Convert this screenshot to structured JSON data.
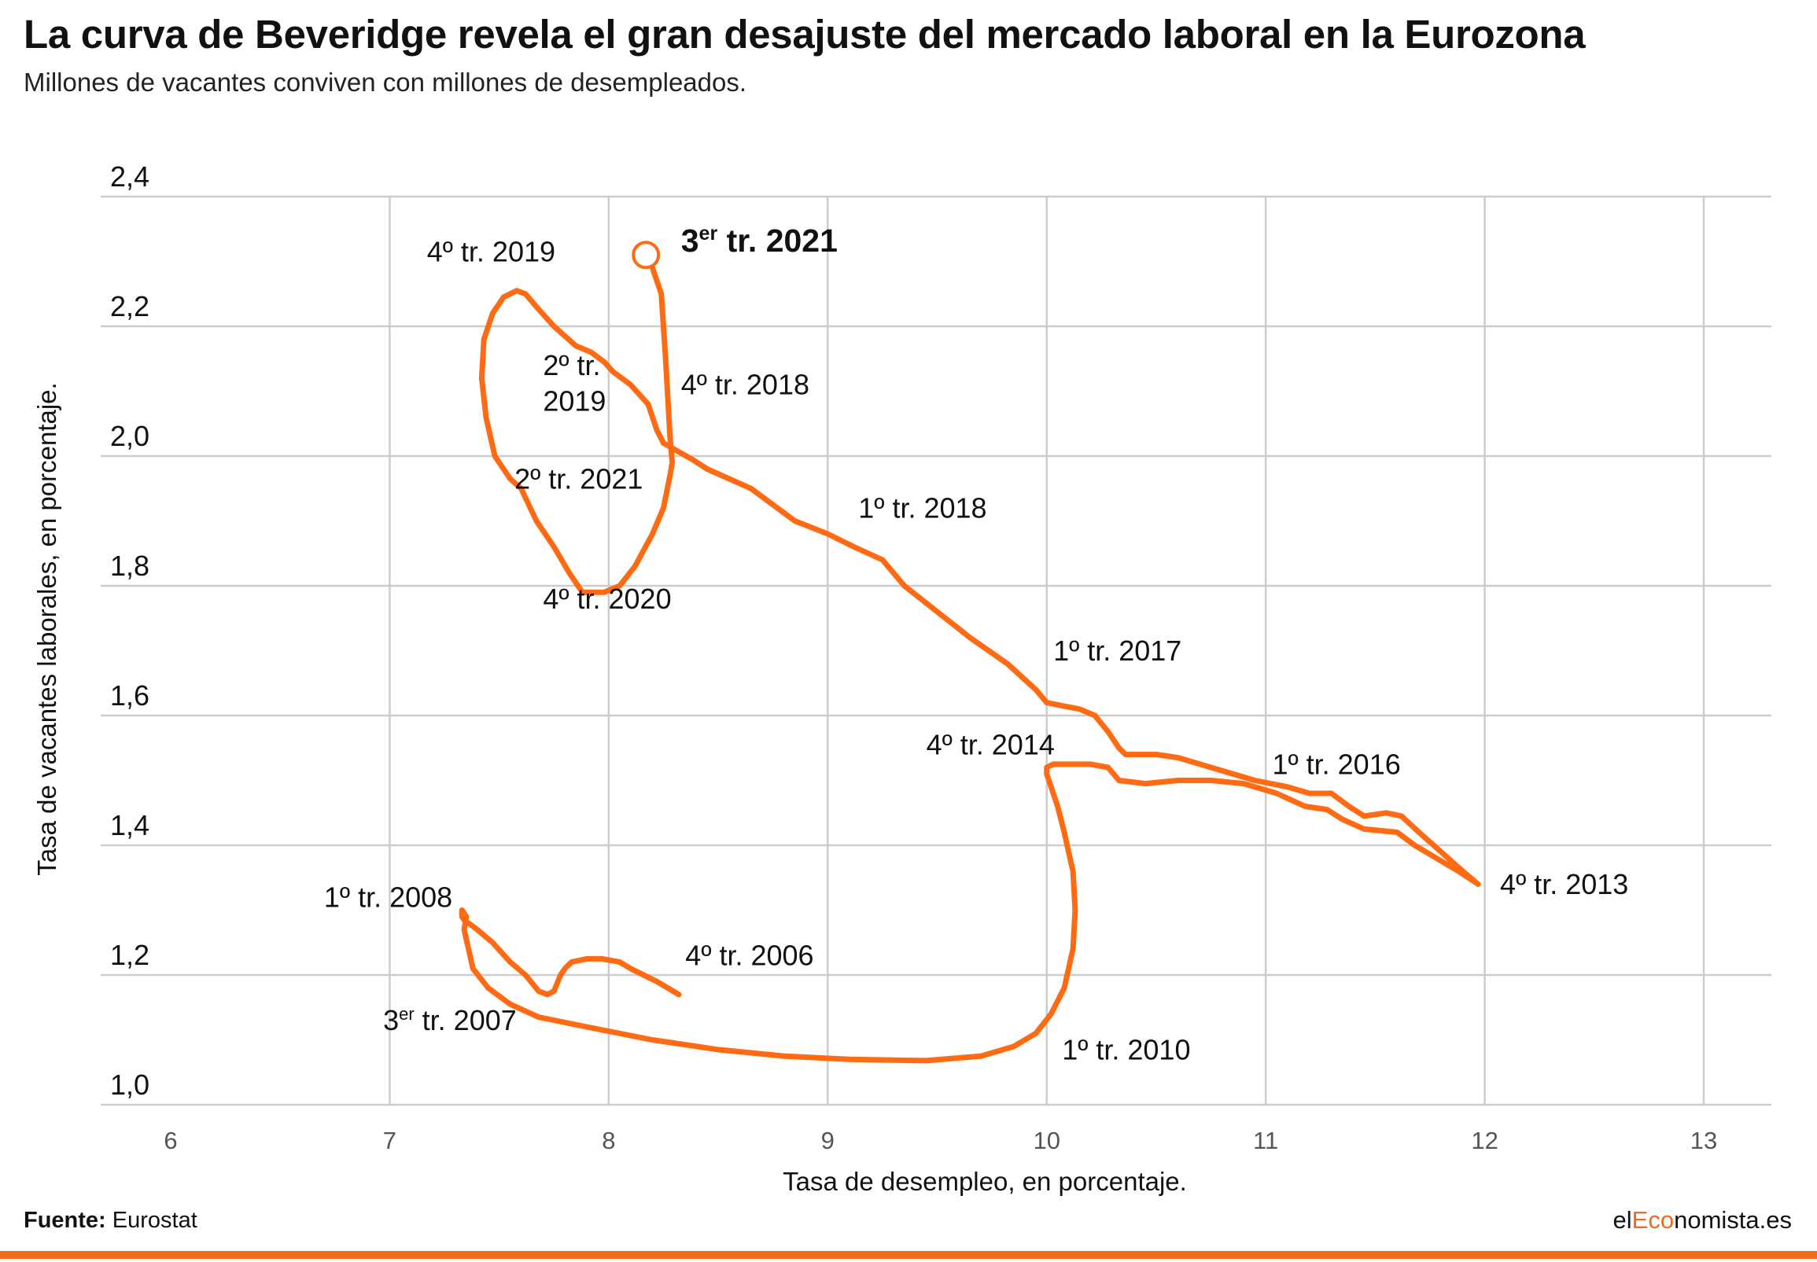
{
  "header": {
    "title": "La curva de Beveridge revela el gran desajuste del mercado laboral en la Eurozona",
    "subtitle": "Millones de vacantes conviven con millones de desempleados."
  },
  "footer": {
    "source_label": "Fuente:",
    "source_value": "Eurostat",
    "brand_part1": "el",
    "brand_part2": "Eco",
    "brand_part3": "nomista.es"
  },
  "colors": {
    "line": "#ff6a13",
    "accent": "#f26a1b",
    "grid": "#cccccc"
  },
  "chart_data": {
    "type": "line",
    "title": "La curva de Beveridge revela el gran desajuste del mercado laboral en la Eurozona",
    "subtitle": "Millones de vacantes conviven con millones de desempleados.",
    "xlabel": "Tasa de desempleo, en porcentaje.",
    "ylabel": "Tasa de vacantes laborales, en porcentaje.",
    "xlim": [
      6,
      13
    ],
    "ylim": [
      1.0,
      2.4
    ],
    "xticks": [
      6,
      7,
      8,
      9,
      10,
      11,
      12,
      13
    ],
    "xtick_labels": [
      "6",
      "7",
      "8",
      "9",
      "10",
      "11",
      "12",
      "13"
    ],
    "yticks": [
      1.0,
      1.2,
      1.4,
      1.6,
      1.8,
      2.0,
      2.2,
      2.4
    ],
    "ytick_labels": [
      "1,0",
      "1,2",
      "1,4",
      "1,6",
      "1,8",
      "2,0",
      "2,2",
      "2,4"
    ],
    "grid": true,
    "series": [
      {
        "x": [
          8.32,
          8.22,
          8.1,
          8.05,
          7.97,
          7.9,
          7.83,
          7.8,
          7.78,
          7.75,
          7.72,
          7.68,
          7.62,
          7.55,
          7.47,
          7.4,
          7.36,
          7.35,
          7.33,
          7.33,
          7.35,
          7.34,
          7.36,
          7.38,
          7.45,
          7.55,
          7.68,
          7.9,
          8.2,
          8.5,
          8.8,
          9.1,
          9.45,
          9.7,
          9.85,
          9.95,
          10.02,
          10.08,
          10.12,
          10.13,
          10.12,
          10.08,
          10.05,
          10.02,
          10.0,
          10.0,
          10.03,
          10.1,
          10.2,
          10.28,
          10.33,
          10.45,
          10.6,
          10.75,
          10.9,
          11.05,
          11.18,
          11.28,
          11.35,
          11.45,
          11.6,
          11.68,
          11.78,
          11.88,
          11.97,
          11.9,
          11.8,
          11.7,
          11.62,
          11.55,
          11.45,
          11.38,
          11.3,
          11.2,
          11.1,
          10.95,
          10.75,
          10.6,
          10.5,
          10.42,
          10.36,
          10.33,
          10.28,
          10.22,
          10.15,
          10.07,
          10.0,
          9.95,
          9.82,
          9.65,
          9.5,
          9.35,
          9.25,
          9.12,
          9.0,
          8.85,
          8.65,
          8.45,
          8.38,
          8.25,
          8.22,
          8.18,
          8.1,
          8.02,
          7.98,
          7.92,
          7.85,
          7.75,
          7.67,
          7.62,
          7.58,
          7.52,
          7.47,
          7.43,
          7.42,
          7.44,
          7.48,
          7.55,
          7.6,
          7.67,
          7.75,
          7.82,
          7.88,
          7.92,
          7.98,
          8.05,
          8.12,
          8.2,
          8.25,
          8.28,
          8.29,
          8.28,
          8.26,
          8.24,
          8.2,
          8.17
        ],
        "y": [
          1.17,
          1.19,
          1.21,
          1.22,
          1.225,
          1.225,
          1.22,
          1.21,
          1.2,
          1.175,
          1.17,
          1.175,
          1.2,
          1.22,
          1.25,
          1.27,
          1.28,
          1.28,
          1.29,
          1.3,
          1.29,
          1.27,
          1.24,
          1.21,
          1.18,
          1.155,
          1.135,
          1.12,
          1.1,
          1.085,
          1.075,
          1.07,
          1.068,
          1.075,
          1.09,
          1.11,
          1.14,
          1.18,
          1.24,
          1.3,
          1.36,
          1.42,
          1.46,
          1.49,
          1.51,
          1.52,
          1.525,
          1.525,
          1.525,
          1.52,
          1.5,
          1.495,
          1.5,
          1.5,
          1.495,
          1.48,
          1.46,
          1.455,
          1.44,
          1.425,
          1.42,
          1.4,
          1.38,
          1.36,
          1.34,
          1.36,
          1.39,
          1.42,
          1.445,
          1.45,
          1.445,
          1.46,
          1.48,
          1.48,
          1.49,
          1.5,
          1.52,
          1.535,
          1.54,
          1.54,
          1.54,
          1.55,
          1.575,
          1.6,
          1.61,
          1.615,
          1.62,
          1.64,
          1.68,
          1.72,
          1.76,
          1.8,
          1.84,
          1.86,
          1.88,
          1.9,
          1.95,
          1.98,
          1.995,
          2.02,
          2.04,
          2.08,
          2.11,
          2.13,
          2.145,
          2.16,
          2.17,
          2.2,
          2.23,
          2.25,
          2.255,
          2.245,
          2.22,
          2.18,
          2.12,
          2.06,
          2.0,
          1.965,
          1.95,
          1.9,
          1.86,
          1.82,
          1.79,
          1.79,
          1.79,
          1.8,
          1.83,
          1.88,
          1.92,
          1.97,
          1.99,
          2.03,
          2.15,
          2.25,
          2.29,
          2.31
        ]
      }
    ],
    "annotations": [
      {
        "text": "1º tr. 2008",
        "x": 6.7,
        "y": 1.305
      },
      {
        "text": "4º tr. 2006",
        "x": 8.35,
        "y": 1.215
      },
      {
        "text": "3er tr. 2007",
        "x": 6.97,
        "y": 1.115
      },
      {
        "text": "1º tr. 2010",
        "x": 10.07,
        "y": 1.07
      },
      {
        "text": "4º tr. 2014",
        "x": 9.45,
        "y": 1.54
      },
      {
        "text": "1º tr. 2016",
        "x": 11.03,
        "y": 1.51
      },
      {
        "text": "4º tr. 2013",
        "x": 12.07,
        "y": 1.325
      },
      {
        "text": "1º tr. 2017",
        "x": 10.03,
        "y": 1.685
      },
      {
        "text": "1º tr. 2018",
        "x": 9.14,
        "y": 1.905
      },
      {
        "text": "4º tr. 2018",
        "x": 8.33,
        "y": 2.095
      },
      {
        "text": "2º tr.",
        "x": 7.7,
        "y": 2.125
      },
      {
        "text": "2019",
        "x": 7.7,
        "y": 2.07
      },
      {
        "text": "4º tr. 2019",
        "x": 7.17,
        "y": 2.3
      },
      {
        "text": "2º tr. 2021",
        "x": 7.57,
        "y": 1.95
      },
      {
        "text": "4º tr. 2020",
        "x": 7.7,
        "y": 1.765
      },
      {
        "text": "3er tr. 2021",
        "x": 8.33,
        "y": 2.315
      }
    ],
    "highlight": {
      "label": "3er tr. 2021",
      "x": 8.17,
      "y": 2.31
    }
  }
}
